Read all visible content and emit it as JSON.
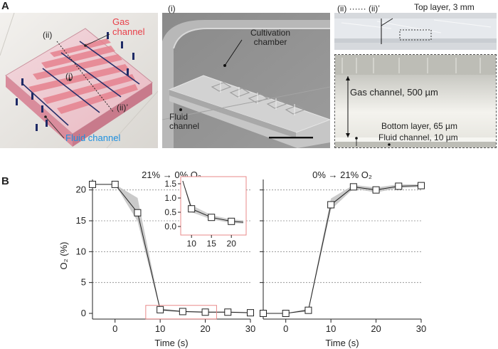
{
  "panel_a": {
    "letter": "A",
    "device_photo": {
      "gas_channel_label": "Gas\nchannel",
      "fluid_channel_label": "Fluid channel",
      "marker_ii": "(ii)",
      "marker_i": "(i)",
      "marker_ii_prime": "(ii)’",
      "gas_color": "#e8404a",
      "fluid_color": "#1e90e0"
    },
    "sem_image": {
      "title": "(i)",
      "cultivation_label": "Cultivation\nchamber",
      "fluid_label": "Fluid\nchannel"
    },
    "cross_section": {
      "title": "(ii) ······ (ii)’",
      "top_layer_label": "Top layer, 3 mm",
      "gas_channel_label": "Gas channel, 500 µm",
      "bottom_layer_label": "Bottom layer, 65 µm",
      "fluid_channel_label": "Fluid channel, 10 µm"
    }
  },
  "panel_b": {
    "letter": "B",
    "ylabel": "O₂ (%)",
    "xlabel": "Time (s)"
  },
  "chart_data": [
    {
      "type": "line",
      "title": "21% → 0% O₂",
      "xlabel": "Time (s)",
      "ylabel": "O₂ (%)",
      "xlim": [
        -5,
        30
      ],
      "ylim": [
        0,
        21
      ],
      "x_ticks": [
        0,
        10,
        20,
        30
      ],
      "y_ticks": [
        0,
        5,
        10,
        15,
        20
      ],
      "grid": "horizontal dotted",
      "series": [
        {
          "x": [
            -5,
            0,
            5,
            10,
            15,
            20,
            25,
            30
          ],
          "y": [
            20.9,
            20.9,
            16.3,
            0.6,
            0.3,
            0.2,
            0.2,
            0.1
          ],
          "y_low": [
            20.9,
            20.9,
            14.9,
            0.4,
            0.2,
            0.1,
            0.1,
            0.05
          ],
          "y_high": [
            20.9,
            20.9,
            18.7,
            0.8,
            0.4,
            0.3,
            0.3,
            0.2
          ]
        }
      ],
      "inset": {
        "xlim": [
          8,
          23
        ],
        "ylim": [
          -0.2,
          1.6
        ],
        "x_ticks": [
          10,
          15,
          20
        ],
        "y_ticks": [
          0.0,
          0.5,
          1.0,
          1.5
        ],
        "y_tick_labels": [
          "0.0",
          "0.5",
          "1.0",
          "1.5"
        ],
        "series_x": [
          7.8,
          10,
          15,
          20,
          23
        ],
        "series_y": [
          1.8,
          0.62,
          0.32,
          0.18,
          0.15
        ],
        "y_low": [
          1.8,
          0.5,
          0.25,
          0.12,
          0.1
        ],
        "y_high": [
          1.8,
          0.75,
          0.4,
          0.25,
          0.22
        ]
      }
    },
    {
      "type": "line",
      "title": "0% → 21% O₂",
      "xlabel": "Time (s)",
      "xlim": [
        -5,
        30
      ],
      "ylim": [
        0,
        21
      ],
      "x_ticks": [
        0,
        10,
        20,
        30
      ],
      "grid": "horizontal dotted",
      "series": [
        {
          "x": [
            -5,
            0,
            5,
            10,
            15,
            20,
            25,
            30
          ],
          "y": [
            0,
            0,
            0.5,
            17.6,
            20.5,
            20.0,
            20.6,
            20.7
          ],
          "y_low": [
            0,
            0,
            0.3,
            16.8,
            20.2,
            19.6,
            20.3,
            20.5
          ],
          "y_high": [
            0,
            0,
            0.8,
            18.6,
            20.8,
            20.4,
            20.9,
            20.9
          ]
        }
      ]
    }
  ]
}
